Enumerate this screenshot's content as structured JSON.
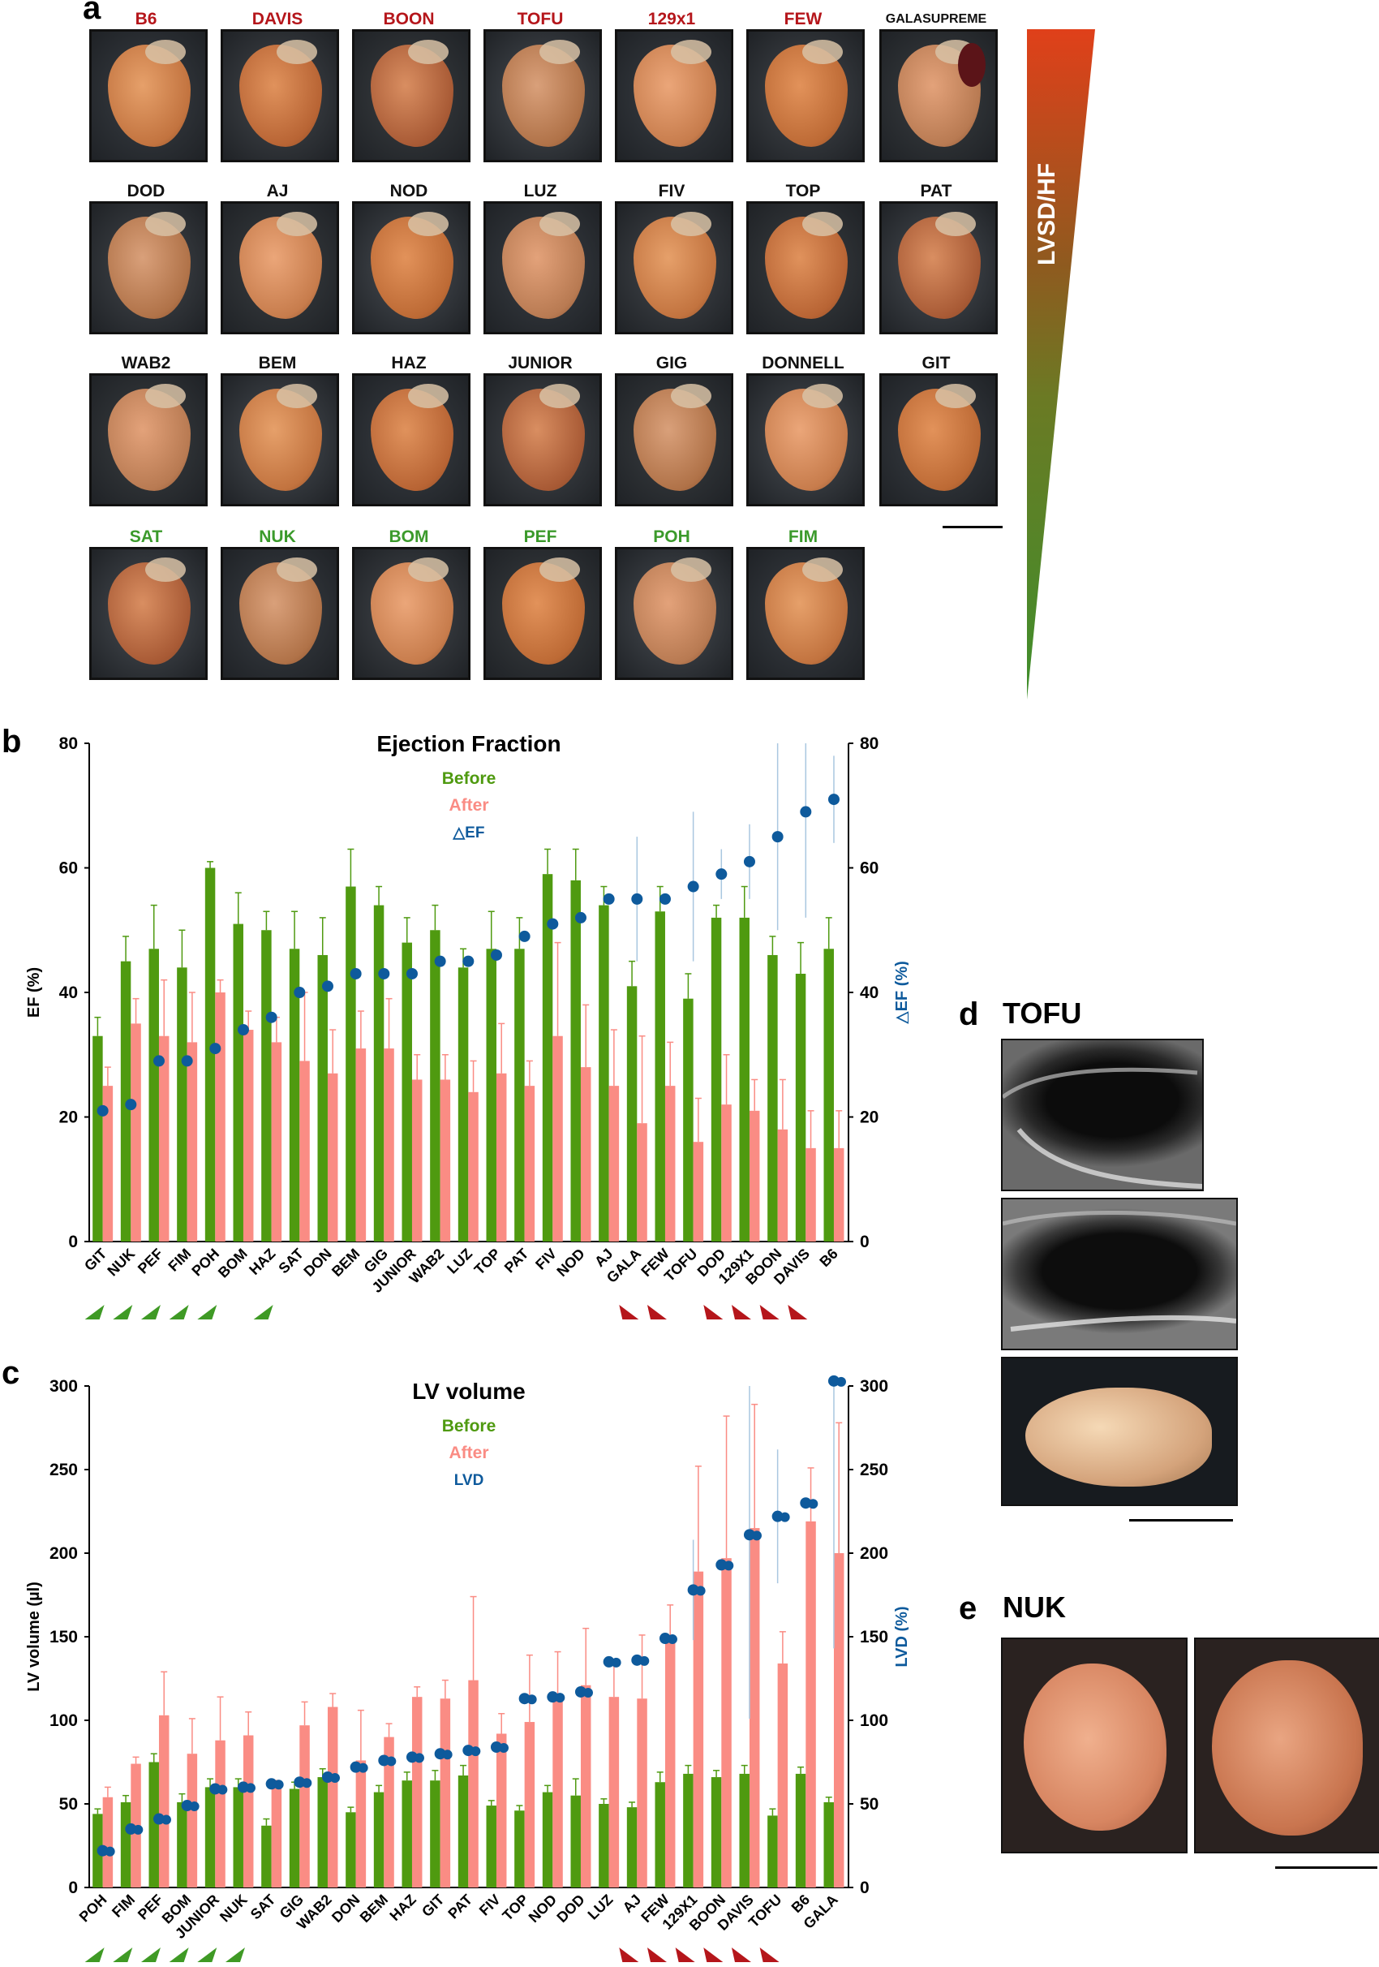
{
  "panel_labels": {
    "a": "a",
    "b": "b",
    "c": "c",
    "d": "d",
    "e": "e"
  },
  "colors": {
    "red_text": "#b5161b",
    "green_text": "#3b9a2b",
    "black_text": "#111111",
    "bar_before": "#4f9a10",
    "bar_after": "#fa8c84",
    "dot": "#0e5a9c",
    "err": "#a9c7e0"
  },
  "panel_a": {
    "rows": [
      [
        {
          "name": "B6",
          "color": "red"
        },
        {
          "name": "DAVIS",
          "color": "red"
        },
        {
          "name": "BOON",
          "color": "red"
        },
        {
          "name": "TOFU",
          "color": "red"
        },
        {
          "name": "129x1",
          "color": "red"
        },
        {
          "name": "FEW",
          "color": "red"
        },
        {
          "name": "GALASUPREME",
          "color": "black"
        }
      ],
      [
        {
          "name": "DOD",
          "color": "black"
        },
        {
          "name": "AJ",
          "color": "black"
        },
        {
          "name": "NOD",
          "color": "black"
        },
        {
          "name": "LUZ",
          "color": "black"
        },
        {
          "name": "FIV",
          "color": "black"
        },
        {
          "name": "TOP",
          "color": "black"
        },
        {
          "name": "PAT",
          "color": "black"
        }
      ],
      [
        {
          "name": "WAB2",
          "color": "black"
        },
        {
          "name": "BEM",
          "color": "black"
        },
        {
          "name": "HAZ",
          "color": "black"
        },
        {
          "name": "JUNIOR",
          "color": "black"
        },
        {
          "name": "GIG",
          "color": "black"
        },
        {
          "name": "DONNELL",
          "color": "black"
        },
        {
          "name": "GIT",
          "color": "black"
        }
      ],
      [
        {
          "name": "SAT",
          "color": "green"
        },
        {
          "name": "NUK",
          "color": "green"
        },
        {
          "name": "BOM",
          "color": "green"
        },
        {
          "name": "PEF",
          "color": "green"
        },
        {
          "name": "POH",
          "color": "green"
        },
        {
          "name": "FIM",
          "color": "green"
        }
      ]
    ],
    "gradient_label": "LVSD/HF"
  },
  "panel_d": {
    "title": "TOFU"
  },
  "panel_e": {
    "title": "NUK"
  },
  "chart_data": [
    {
      "type": "bar",
      "title": "Ejection Fraction",
      "ylabel": "EF (%)",
      "y2label": "△EF (%)",
      "ylim": [
        0,
        80
      ],
      "y2lim": [
        0,
        80
      ],
      "yticks": [
        "0",
        "20",
        "40",
        "60",
        "80"
      ],
      "legend": [
        "Before",
        "After",
        "△EF"
      ],
      "categories": [
        "GIT",
        "NUK",
        "PEF",
        "FIM",
        "POH",
        "BOM",
        "HAZ",
        "SAT",
        "DON",
        "BEM",
        "GIG",
        "JUNIOR",
        "WAB2",
        "LUZ",
        "TOP",
        "PAT",
        "FIV",
        "NOD",
        "AJ",
        "GALA",
        "FEW",
        "TOFU",
        "DOD",
        "129X1",
        "BOON",
        "DAVIS",
        "B6"
      ],
      "series": [
        {
          "name": "Before",
          "values": [
            33,
            45,
            47,
            44,
            60,
            51,
            50,
            47,
            46,
            57,
            54,
            48,
            50,
            44,
            47,
            47,
            59,
            58,
            54,
            41,
            53,
            39,
            52,
            52,
            46,
            43,
            47
          ],
          "errors": [
            3,
            4,
            7,
            6,
            1,
            5,
            3,
            6,
            6,
            6,
            3,
            4,
            4,
            3,
            6,
            5,
            4,
            5,
            3,
            4,
            4,
            4,
            2,
            5,
            3,
            5,
            5
          ]
        },
        {
          "name": "After",
          "values": [
            25,
            35,
            33,
            32,
            40,
            34,
            32,
            29,
            27,
            31,
            31,
            26,
            26,
            24,
            27,
            25,
            33,
            28,
            25,
            19,
            25,
            16,
            22,
            21,
            18,
            15,
            15
          ],
          "errors": [
            3,
            4,
            9,
            8,
            2,
            3,
            4,
            11,
            7,
            6,
            8,
            4,
            4,
            5,
            8,
            4,
            15,
            10,
            9,
            14,
            7,
            7,
            8,
            5,
            8,
            6,
            6
          ]
        },
        {
          "name": "△EF",
          "values": [
            21,
            22,
            29,
            29,
            31,
            34,
            36,
            40,
            41,
            43,
            43,
            43,
            45,
            45,
            46,
            49,
            51,
            52,
            55,
            55,
            55,
            57,
            59,
            61,
            65,
            69,
            71
          ],
          "errors": [
            0,
            0,
            0,
            0,
            0,
            0,
            0,
            0,
            0,
            0,
            0,
            0,
            0,
            0,
            0,
            0,
            0,
            0,
            0,
            10,
            0,
            12,
            4,
            6,
            15,
            17,
            7
          ]
        }
      ],
      "green_markers": [
        "GIT",
        "NUK",
        "PEF",
        "FIM",
        "POH",
        "HAZ"
      ],
      "red_markers": [
        "GALA",
        "FEW",
        "DOD",
        "129X1",
        "BOON",
        "DAVIS"
      ]
    },
    {
      "type": "bar",
      "title": "LV volume",
      "ylabel": "LV volume (µl)",
      "y2label": "LVD (%)",
      "ylim": [
        0,
        300
      ],
      "y2lim": [
        0,
        300
      ],
      "yticks": [
        "0",
        "50",
        "100",
        "150",
        "200",
        "250",
        "300"
      ],
      "legend": [
        "Before",
        "After",
        "LVD"
      ],
      "categories": [
        "POH",
        "FIM",
        "PEF",
        "BOM",
        "JUNIOR",
        "NUK",
        "SAT",
        "GIG",
        "WAB2",
        "DON",
        "BEM",
        "HAZ",
        "GIT",
        "PAT",
        "FIV",
        "TOP",
        "NOD",
        "DOD",
        "LUZ",
        "AJ",
        "FEW",
        "129X1",
        "BOON",
        "DAVIS",
        "TOFU",
        "B6",
        "GALA"
      ],
      "series": [
        {
          "name": "Before",
          "values": [
            44,
            51,
            75,
            51,
            60,
            60,
            37,
            59,
            66,
            45,
            57,
            64,
            64,
            67,
            49,
            46,
            57,
            55,
            50,
            48,
            63,
            68,
            66,
            68,
            43,
            68,
            51
          ],
          "errors": [
            3,
            4,
            5,
            5,
            5,
            5,
            4,
            4,
            5,
            3,
            4,
            5,
            6,
            6,
            3,
            3,
            4,
            10,
            3,
            3,
            6,
            5,
            4,
            5,
            4,
            4,
            3
          ]
        },
        {
          "name": "After",
          "values": [
            54,
            74,
            103,
            80,
            88,
            91,
            61,
            97,
            108,
            76,
            90,
            114,
            113,
            124,
            92,
            99,
            115,
            121,
            114,
            113,
            149,
            189,
            197,
            215,
            134,
            219,
            200
          ],
          "errors": [
            6,
            4,
            26,
            21,
            26,
            14,
            3,
            14,
            8,
            30,
            8,
            6,
            11,
            50,
            12,
            40,
            26,
            34,
            20,
            38,
            20,
            63,
            85,
            74,
            19,
            32,
            78
          ]
        },
        {
          "name": "LVD",
          "values": [
            22,
            35,
            41,
            49,
            59,
            60,
            62,
            63,
            66,
            72,
            76,
            78,
            80,
            82,
            84,
            113,
            114,
            117,
            135,
            136,
            149,
            178,
            193,
            211,
            222,
            230,
            303
          ],
          "errors": [
            0,
            0,
            0,
            0,
            0,
            0,
            0,
            0,
            0,
            0,
            0,
            0,
            0,
            0,
            0,
            0,
            0,
            0,
            0,
            0,
            0,
            30,
            0,
            110,
            40,
            0,
            160
          ]
        }
      ],
      "green_markers": [
        "POH",
        "FIM",
        "PEF",
        "BOM",
        "JUNIOR",
        "NUK"
      ],
      "red_markers": [
        "AJ",
        "FEW",
        "129X1",
        "BOON",
        "DAVIS",
        "TOFU"
      ]
    }
  ]
}
